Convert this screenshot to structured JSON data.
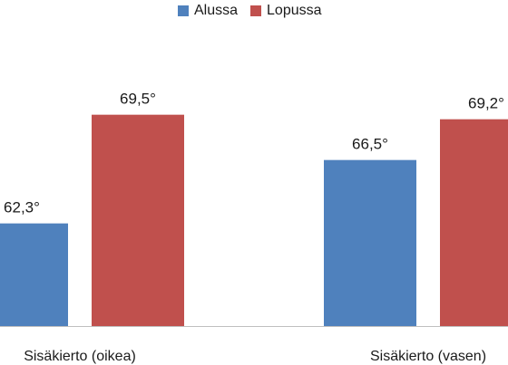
{
  "chart_data": {
    "type": "bar",
    "title": "",
    "xlabel": "",
    "ylabel": "",
    "categories": [
      "Sisäkierto (oikea)",
      "Sisäkierto (vasen)"
    ],
    "series": [
      {
        "name": "Alussa",
        "color": "#4f81bd",
        "values": [
          62.3,
          66.5
        ],
        "labels": [
          "62,3°",
          "66,5°"
        ]
      },
      {
        "name": "Lopussa",
        "color": "#c0504d",
        "values": [
          69.5,
          69.2
        ],
        "labels": [
          "69,5°",
          "69,2°"
        ]
      }
    ],
    "ylim": [
      55.5,
      72.0
    ],
    "grid": false,
    "legend_position": "top-center"
  }
}
